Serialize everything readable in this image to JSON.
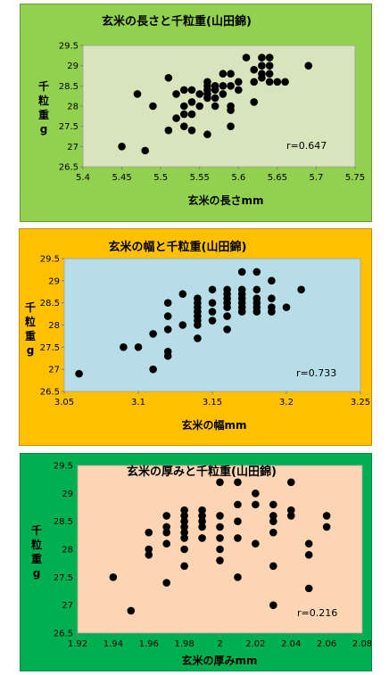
{
  "colors": {
    "panel1_bg": "#92d050",
    "panel1_plot": "#d8e4bc",
    "panel2_bg": "#ffc000",
    "panel2_plot": "#b7dee8",
    "panel3_bg": "#00b050",
    "panel3_plot": "#fcd5b4",
    "marker": "#000000",
    "grid": "#c0c0c0"
  },
  "chart_data": [
    {
      "type": "scatter",
      "title": "玄米の長さと千粒重(山田錦)",
      "xlabel": "玄米の長さmm",
      "ylabel": "千粒重g",
      "xlim": [
        5.4,
        5.75
      ],
      "ylim": [
        26.5,
        29.5
      ],
      "xticks": [
        "5.4",
        "5.45",
        "5.5",
        "5.55",
        "5.6",
        "5.65",
        "5.7",
        "5.75"
      ],
      "yticks": [
        "26.5",
        "27",
        "27.5",
        "28",
        "28.5",
        "29",
        "29.5"
      ],
      "annotation": "r=0.647",
      "points": [
        [
          5.45,
          27.0
        ],
        [
          5.47,
          28.3
        ],
        [
          5.48,
          26.9
        ],
        [
          5.49,
          28.0
        ],
        [
          5.51,
          28.7
        ],
        [
          5.51,
          27.4
        ],
        [
          5.52,
          27.7
        ],
        [
          5.52,
          28.3
        ],
        [
          5.53,
          28.4
        ],
        [
          5.53,
          28.0
        ],
        [
          5.53,
          27.8
        ],
        [
          5.53,
          27.5
        ],
        [
          5.54,
          28.4
        ],
        [
          5.54,
          28.1
        ],
        [
          5.54,
          27.8
        ],
        [
          5.54,
          27.4
        ],
        [
          5.55,
          28.3
        ],
        [
          5.55,
          28.0
        ],
        [
          5.56,
          28.6
        ],
        [
          5.56,
          28.5
        ],
        [
          5.56,
          28.4
        ],
        [
          5.56,
          28.3
        ],
        [
          5.56,
          28.2
        ],
        [
          5.56,
          27.3
        ],
        [
          5.57,
          28.5
        ],
        [
          5.57,
          28.4
        ],
        [
          5.57,
          28.2
        ],
        [
          5.57,
          28.0
        ],
        [
          5.58,
          28.8
        ],
        [
          5.58,
          28.5
        ],
        [
          5.58,
          28.3
        ],
        [
          5.59,
          28.8
        ],
        [
          5.59,
          28.5
        ],
        [
          5.59,
          28.0
        ],
        [
          5.59,
          27.9
        ],
        [
          5.59,
          27.5
        ],
        [
          5.6,
          28.6
        ],
        [
          5.6,
          28.4
        ],
        [
          5.61,
          29.2
        ],
        [
          5.62,
          28.1
        ],
        [
          5.62,
          28.9
        ],
        [
          5.62,
          28.6
        ],
        [
          5.63,
          29.2
        ],
        [
          5.63,
          29.0
        ],
        [
          5.63,
          28.8
        ],
        [
          5.63,
          28.7
        ],
        [
          5.64,
          29.2
        ],
        [
          5.64,
          29.0
        ],
        [
          5.64,
          28.8
        ],
        [
          5.64,
          28.6
        ],
        [
          5.65,
          28.6
        ],
        [
          5.66,
          28.6
        ],
        [
          5.69,
          29.0
        ]
      ]
    },
    {
      "type": "scatter",
      "title": "玄米の幅と千粒重(山田錦)",
      "xlabel": "玄米の幅mm",
      "ylabel": "千粒重g",
      "xlim": [
        3.05,
        3.25
      ],
      "ylim": [
        26.5,
        29.5
      ],
      "xticks": [
        "3.05",
        "3.1",
        "3.15",
        "3.2",
        "3.25"
      ],
      "yticks": [
        "26.5",
        "27",
        "27.5",
        "28",
        "28.5",
        "29",
        "29.5"
      ],
      "annotation": "r=0.733",
      "points": [
        [
          3.06,
          26.9
        ],
        [
          3.09,
          27.5
        ],
        [
          3.1,
          27.5
        ],
        [
          3.11,
          27.0
        ],
        [
          3.11,
          27.8
        ],
        [
          3.12,
          28.5
        ],
        [
          3.12,
          28.2
        ],
        [
          3.12,
          27.9
        ],
        [
          3.12,
          27.4
        ],
        [
          3.12,
          27.3
        ],
        [
          3.13,
          28.7
        ],
        [
          3.13,
          28.0
        ],
        [
          3.14,
          28.6
        ],
        [
          3.14,
          28.5
        ],
        [
          3.14,
          28.4
        ],
        [
          3.14,
          28.3
        ],
        [
          3.14,
          28.2
        ],
        [
          3.14,
          28.1
        ],
        [
          3.14,
          28.0
        ],
        [
          3.14,
          27.7
        ],
        [
          3.15,
          28.8
        ],
        [
          3.15,
          28.5
        ],
        [
          3.15,
          28.3
        ],
        [
          3.15,
          28.1
        ],
        [
          3.16,
          28.8
        ],
        [
          3.16,
          28.7
        ],
        [
          3.16,
          28.6
        ],
        [
          3.16,
          28.5
        ],
        [
          3.16,
          28.4
        ],
        [
          3.16,
          28.2
        ],
        [
          3.16,
          27.9
        ],
        [
          3.17,
          29.2
        ],
        [
          3.17,
          28.8
        ],
        [
          3.17,
          28.7
        ],
        [
          3.17,
          28.6
        ],
        [
          3.17,
          28.5
        ],
        [
          3.17,
          28.4
        ],
        [
          3.17,
          28.3
        ],
        [
          3.18,
          29.2
        ],
        [
          3.18,
          28.8
        ],
        [
          3.18,
          28.6
        ],
        [
          3.18,
          28.5
        ],
        [
          3.18,
          28.4
        ],
        [
          3.18,
          28.3
        ],
        [
          3.19,
          29.0
        ],
        [
          3.19,
          28.6
        ],
        [
          3.19,
          28.4
        ],
        [
          3.19,
          28.3
        ],
        [
          3.2,
          28.4
        ],
        [
          3.21,
          28.8
        ]
      ]
    },
    {
      "type": "scatter",
      "title": "玄米の厚みと千粒重(山田錦)",
      "xlabel": "玄米の厚みmm",
      "ylabel": "千粒重g",
      "xlim": [
        1.92,
        2.08
      ],
      "ylim": [
        26.5,
        29.5
      ],
      "xticks": [
        "1.92",
        "1.94",
        "1.96",
        "1.98",
        "2",
        "2.02",
        "2.04",
        "2.06",
        "2.08"
      ],
      "yticks": [
        "26.5",
        "27",
        "27.5",
        "28",
        "28.5",
        "29",
        "29.5"
      ],
      "annotation": "r=0.216",
      "points": [
        [
          1.94,
          27.5
        ],
        [
          1.95,
          26.9
        ],
        [
          1.96,
          28.3
        ],
        [
          1.96,
          28.0
        ],
        [
          1.96,
          27.9
        ],
        [
          1.97,
          28.6
        ],
        [
          1.97,
          28.4
        ],
        [
          1.97,
          28.3
        ],
        [
          1.97,
          28.1
        ],
        [
          1.97,
          27.4
        ],
        [
          1.98,
          28.7
        ],
        [
          1.98,
          28.6
        ],
        [
          1.98,
          28.5
        ],
        [
          1.98,
          28.4
        ],
        [
          1.98,
          28.3
        ],
        [
          1.98,
          28.2
        ],
        [
          1.98,
          28.0
        ],
        [
          1.98,
          27.7
        ],
        [
          1.99,
          28.7
        ],
        [
          1.99,
          28.6
        ],
        [
          1.99,
          28.5
        ],
        [
          1.99,
          28.4
        ],
        [
          1.99,
          28.2
        ],
        [
          2.0,
          29.2
        ],
        [
          2.0,
          28.6
        ],
        [
          2.0,
          28.4
        ],
        [
          2.0,
          28.2
        ],
        [
          2.0,
          28.0
        ],
        [
          2.0,
          27.8
        ],
        [
          2.01,
          29.2
        ],
        [
          2.01,
          28.8
        ],
        [
          2.01,
          28.5
        ],
        [
          2.01,
          28.2
        ],
        [
          2.01,
          27.5
        ],
        [
          2.02,
          29.0
        ],
        [
          2.02,
          28.8
        ],
        [
          2.02,
          28.1
        ],
        [
          2.03,
          28.8
        ],
        [
          2.03,
          28.6
        ],
        [
          2.03,
          28.5
        ],
        [
          2.03,
          28.3
        ],
        [
          2.03,
          27.7
        ],
        [
          2.03,
          27.0
        ],
        [
          2.04,
          29.2
        ],
        [
          2.04,
          28.7
        ],
        [
          2.04,
          28.6
        ],
        [
          2.05,
          28.1
        ],
        [
          2.05,
          27.9
        ],
        [
          2.05,
          27.3
        ],
        [
          2.06,
          28.6
        ],
        [
          2.06,
          28.4
        ]
      ]
    }
  ]
}
